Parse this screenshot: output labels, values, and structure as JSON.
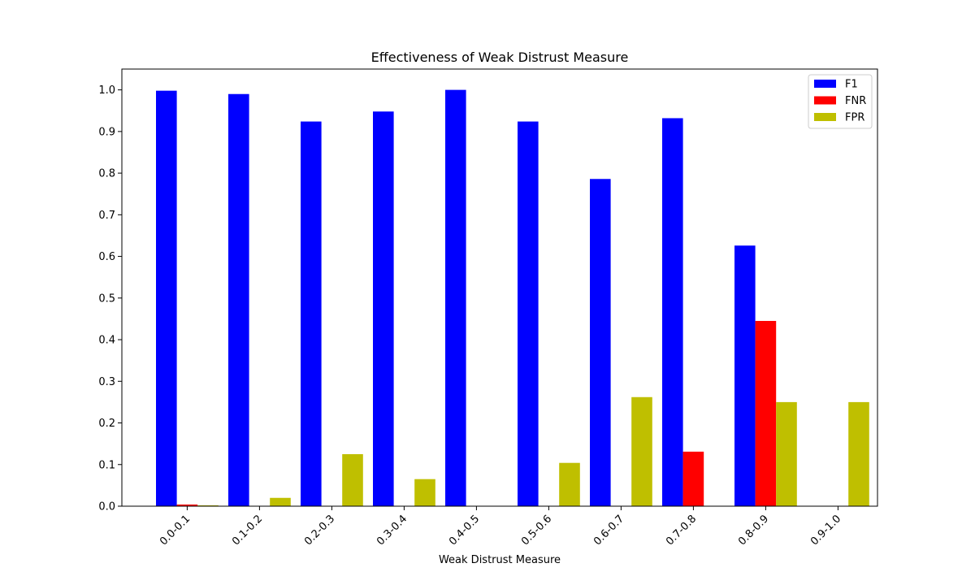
{
  "chart_data": {
    "type": "bar",
    "title": "Effectiveness of Weak Distrust Measure",
    "xlabel": "Weak Distrust Measure",
    "ylabel": "",
    "ylim": [
      0,
      1.05
    ],
    "yticks": [
      "0.0",
      "0.1",
      "0.2",
      "0.3",
      "0.4",
      "0.5",
      "0.6",
      "0.7",
      "0.8",
      "0.9",
      "1.0"
    ],
    "categories": [
      "0.0-0.1",
      "0.1-0.2",
      "0.2-0.3",
      "0.3-0.4",
      "0.4-0.5",
      "0.5-0.6",
      "0.6-0.7",
      "0.7-0.8",
      "0.8-0.9",
      "0.9-1.0"
    ],
    "series": [
      {
        "name": "F1",
        "color": "#0000ff",
        "values": [
          0.998,
          0.99,
          0.924,
          0.948,
          1.0,
          0.924,
          0.786,
          0.932,
          0.626,
          0.0
        ]
      },
      {
        "name": "FNR",
        "color": "#ff0000",
        "values": [
          0.004,
          0.0,
          0.0,
          0.0,
          0.0,
          0.0,
          0.0,
          0.131,
          0.445,
          0.0
        ]
      },
      {
        "name": "FPR",
        "color": "#bfbf00",
        "values": [
          0.002,
          0.02,
          0.125,
          0.065,
          0.0,
          0.104,
          0.262,
          0.0,
          0.25,
          0.25
        ]
      }
    ],
    "legend_position": "top-right",
    "grid": false
  }
}
